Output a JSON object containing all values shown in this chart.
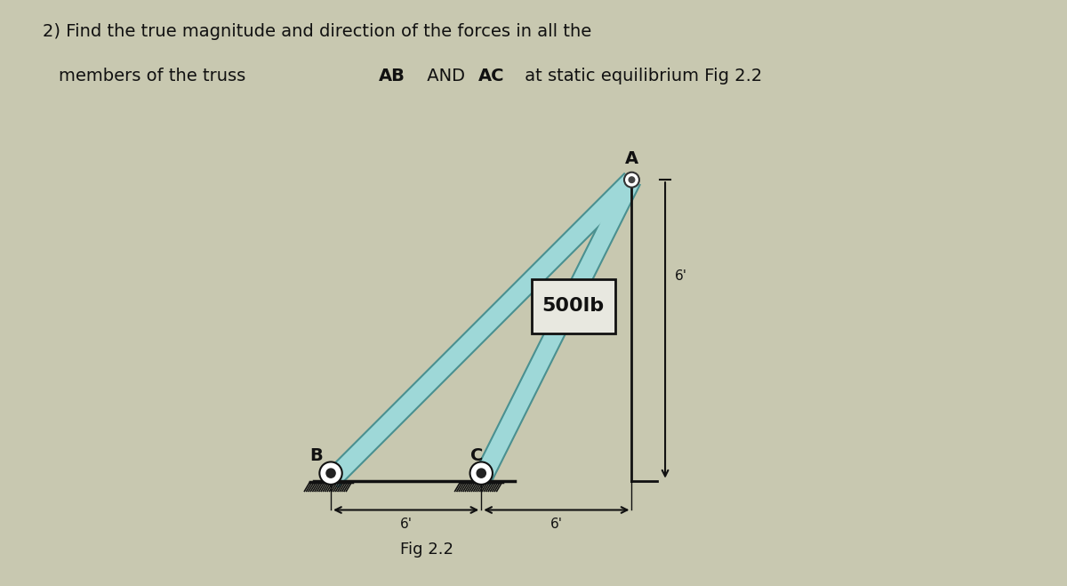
{
  "title_line1": "2) Find the true magnitude and direction of the forces in all the",
  "title_line2_pre": "   members of the truss ",
  "title_bold1": "AB",
  "title_mid": " AND ",
  "title_bold2": "AC",
  "title_end": " at static equilibrium Fig 2.2",
  "fig_label": "Fig 2.2",
  "nodes": {
    "A": [
      0.72,
      0.72
    ],
    "B": [
      0.0,
      0.0
    ],
    "C": [
      0.36,
      0.0
    ]
  },
  "member_color": "#9ed8d8",
  "member_linewidth": 14,
  "member_outline_color": "#4a9090",
  "ground_color": "#111111",
  "background_color": "#c8c8b0",
  "force_box_color": "#e8e8e0",
  "force_box_edge": "#111111",
  "force_label": "500lb",
  "dim_6_label": "6'",
  "xlim": [
    -0.08,
    1.05
  ],
  "ylim": [
    -0.22,
    0.95
  ],
  "figsize": [
    12.0,
    6.59
  ],
  "dpi": 100
}
